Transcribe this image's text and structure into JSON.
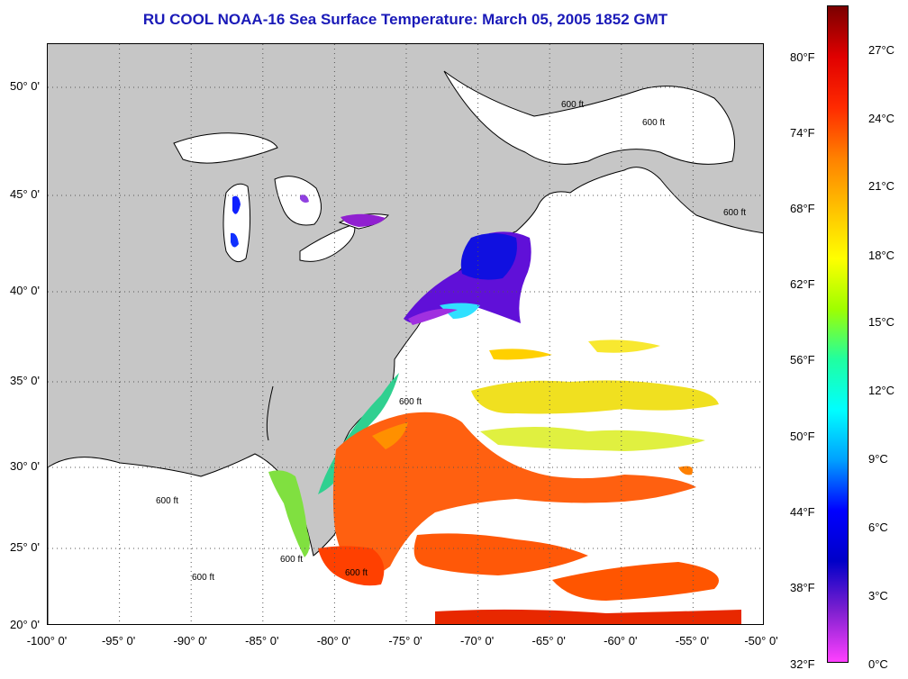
{
  "title": "RU COOL  NOAA-16  Sea Surface Temperature:  March 05, 2005 1852 GMT",
  "map": {
    "latitude_labels": [
      "50° 0'",
      "45° 0'",
      "40° 0'",
      "35° 0'",
      "30° 0'",
      "25° 0'",
      "20° 0'"
    ],
    "longitude_labels": [
      "-100° 0'",
      "-95° 0'",
      "-90° 0'",
      "-85° 0'",
      "-80° 0'",
      "-75° 0'",
      "-70° 0'",
      "-65° 0'",
      "-60° 0'",
      "-55° 0'",
      "-50° 0'"
    ],
    "isobath_label": "600 ft",
    "colors": {
      "land": "#c6c6c6",
      "water_no_data": "#ffffff",
      "coast": "#000000",
      "grid": "#555555"
    }
  },
  "colorbar": {
    "fahrenheit_labels": [
      "80°F",
      "74°F",
      "68°F",
      "62°F",
      "56°F",
      "50°F",
      "44°F",
      "38°F",
      "32°F"
    ],
    "celsius_labels": [
      "27°C",
      "24°C",
      "21°C",
      "18°C",
      "15°C",
      "12°C",
      "9°C",
      "6°C",
      "3°C",
      "0°C"
    ],
    "colors_top_to_bottom": [
      "#7a0000",
      "#e00000",
      "#ff2a00",
      "#ff8000",
      "#ffc000",
      "#ffff00",
      "#9fff00",
      "#20ffa0",
      "#00ffff",
      "#00a0ff",
      "#0000ff",
      "#0000c8",
      "#8020d0",
      "#ff40ff"
    ]
  }
}
